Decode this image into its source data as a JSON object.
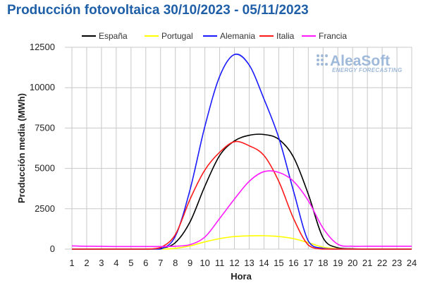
{
  "chart_data": {
    "type": "line",
    "title": "Producción fotovoltaica 30/10/2023 - 05/11/2023",
    "xlabel": "Hora",
    "ylabel": "Producción media (MWh)",
    "x": [
      1,
      2,
      3,
      4,
      5,
      6,
      7,
      8,
      9,
      10,
      11,
      12,
      13,
      14,
      15,
      16,
      17,
      18,
      19,
      20,
      21,
      22,
      23,
      24
    ],
    "xlim": [
      1,
      24
    ],
    "ylim": [
      0,
      12500
    ],
    "yticks": [
      0,
      2500,
      5000,
      7500,
      10000,
      12500
    ],
    "grid": true,
    "legend_position": "top",
    "series": [
      {
        "name": "España",
        "color": "#000000",
        "values": [
          0,
          0,
          0,
          0,
          0,
          0,
          50,
          400,
          1700,
          3900,
          5800,
          6700,
          7050,
          7100,
          6800,
          5700,
          3400,
          700,
          80,
          20,
          0,
          0,
          0,
          0
        ]
      },
      {
        "name": "Portugal",
        "color": "#ffff00",
        "values": [
          0,
          0,
          0,
          0,
          0,
          0,
          0,
          50,
          200,
          450,
          650,
          780,
          820,
          830,
          780,
          650,
          400,
          120,
          20,
          0,
          0,
          0,
          0,
          0
        ]
      },
      {
        "name": "Alemania",
        "color": "#1a1aff",
        "values": [
          0,
          0,
          0,
          0,
          0,
          0,
          0,
          800,
          3700,
          7600,
          10700,
          12050,
          11400,
          9300,
          6900,
          3600,
          500,
          50,
          0,
          0,
          0,
          0,
          0,
          0
        ]
      },
      {
        "name": "Italia",
        "color": "#ff1a1a",
        "values": [
          0,
          0,
          0,
          0,
          0,
          0,
          100,
          900,
          3100,
          4900,
          6000,
          6650,
          6400,
          5800,
          4200,
          1900,
          250,
          0,
          0,
          0,
          0,
          0,
          0,
          0
        ]
      },
      {
        "name": "Francia",
        "color": "#ff1aff",
        "values": [
          200,
          180,
          170,
          160,
          160,
          160,
          160,
          180,
          280,
          750,
          1900,
          3100,
          4200,
          4800,
          4750,
          4200,
          3000,
          1300,
          300,
          180,
          180,
          180,
          180,
          180
        ]
      }
    ]
  },
  "logo": {
    "name": "AleaSoft",
    "tagline": "ENERGY FORECASTING"
  }
}
